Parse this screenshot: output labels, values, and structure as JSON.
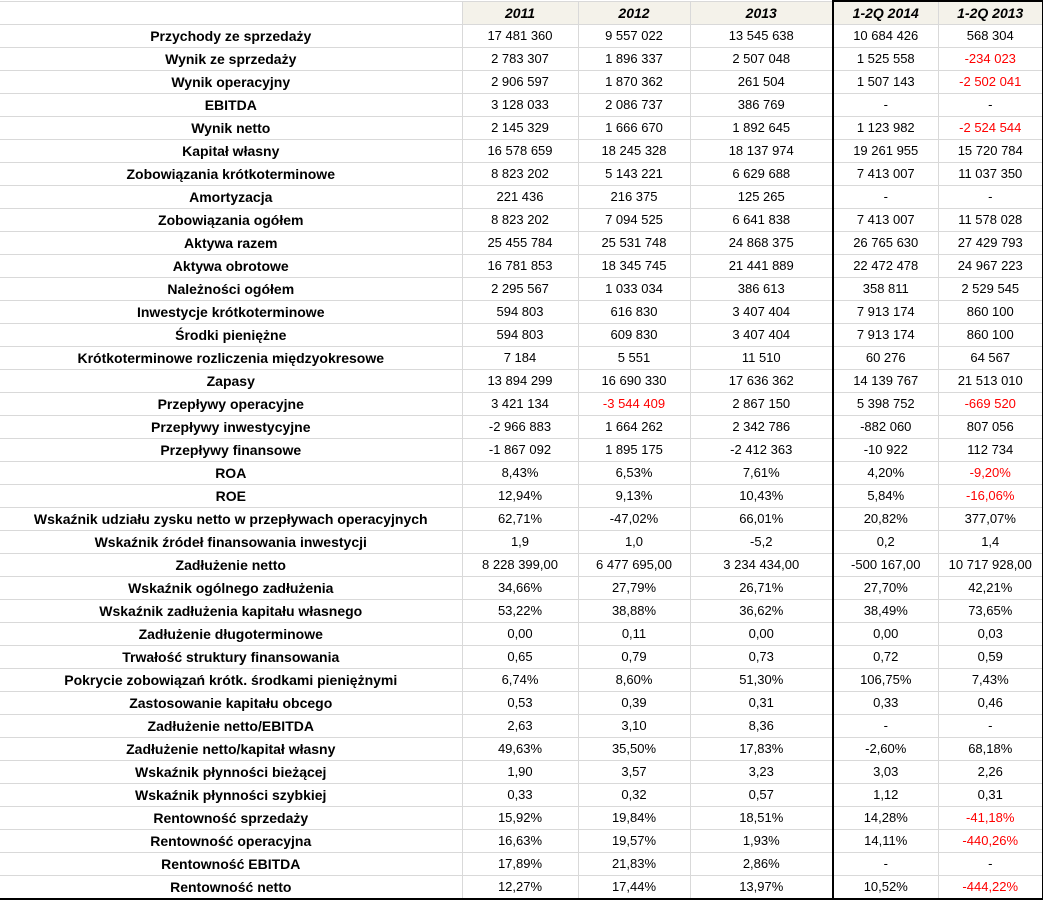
{
  "table": {
    "columns": [
      "",
      "2011",
      "2012",
      "2013",
      "1-2Q 2014",
      "1-2Q 2013"
    ],
    "rows": [
      {
        "label": "Przychody ze sprzedaży",
        "values": [
          "17 481 360",
          "9 557 022",
          "13 545 638",
          "10 684 426",
          "568 304"
        ],
        "red": []
      },
      {
        "label": "Wynik ze sprzedaży",
        "values": [
          "2 783 307",
          "1 896 337",
          "2 507 048",
          "1 525 558",
          "-234 023"
        ],
        "red": [
          4
        ]
      },
      {
        "label": "Wynik operacyjny",
        "values": [
          "2 906 597",
          "1 870 362",
          "261 504",
          "1 507 143",
          "-2 502 041"
        ],
        "red": [
          4
        ]
      },
      {
        "label": "EBITDA",
        "values": [
          "3 128 033",
          "2 086 737",
          "386 769",
          "-",
          "-"
        ],
        "red": []
      },
      {
        "label": "Wynik netto",
        "values": [
          "2 145 329",
          "1 666 670",
          "1 892 645",
          "1 123 982",
          "-2 524 544"
        ],
        "red": [
          4
        ]
      },
      {
        "label": "Kapitał własny",
        "values": [
          "16 578 659",
          "18 245 328",
          "18 137 974",
          "19 261 955",
          "15 720 784"
        ],
        "red": []
      },
      {
        "label": "Zobowiązania krótkoterminowe",
        "values": [
          "8 823 202",
          "5 143 221",
          "6 629 688",
          "7 413 007",
          "11 037 350"
        ],
        "red": []
      },
      {
        "label": "Amortyzacja",
        "values": [
          "221 436",
          "216 375",
          "125 265",
          "-",
          "-"
        ],
        "red": []
      },
      {
        "label": "Zobowiązania ogółem",
        "values": [
          "8 823 202",
          "7 094 525",
          "6 641 838",
          "7 413 007",
          "11 578 028"
        ],
        "red": []
      },
      {
        "label": "Aktywa razem",
        "values": [
          "25 455 784",
          "25 531 748",
          "24 868 375",
          "26 765 630",
          "27 429 793"
        ],
        "red": []
      },
      {
        "label": "Aktywa obrotowe",
        "values": [
          "16 781 853",
          "18 345 745",
          "21 441 889",
          "22 472 478",
          "24 967 223"
        ],
        "red": []
      },
      {
        "label": "Należności ogółem",
        "values": [
          "2 295 567",
          "1 033 034",
          "386 613",
          "358 811",
          "2 529 545"
        ],
        "red": []
      },
      {
        "label": "Inwestycje krótkoterminowe",
        "values": [
          "594 803",
          "616 830",
          "3 407 404",
          "7 913 174",
          "860 100"
        ],
        "red": []
      },
      {
        "label": "Środki pieniężne",
        "values": [
          "594 803",
          "609 830",
          "3 407 404",
          "7 913 174",
          "860 100"
        ],
        "red": []
      },
      {
        "label": "Krótkoterminowe rozliczenia międzyokresowe",
        "values": [
          "7 184",
          "5 551",
          "11 510",
          "60 276",
          "64 567"
        ],
        "red": []
      },
      {
        "label": "Zapasy",
        "values": [
          "13 894 299",
          "16 690 330",
          "17 636 362",
          "14 139 767",
          "21 513 010"
        ],
        "red": []
      },
      {
        "label": "Przepływy operacyjne",
        "values": [
          "3 421 134",
          "-3 544 409",
          "2 867 150",
          "5 398 752",
          "-669 520"
        ],
        "red": [
          1,
          4
        ]
      },
      {
        "label": "Przepływy inwestycyjne",
        "values": [
          "-2 966 883",
          "1 664 262",
          "2 342 786",
          "-882 060",
          "807 056"
        ],
        "red": []
      },
      {
        "label": "Przepływy finansowe",
        "values": [
          "-1 867 092",
          "1 895 175",
          "-2 412 363",
          "-10 922",
          "112 734"
        ],
        "red": []
      },
      {
        "label": "ROA",
        "values": [
          "8,43%",
          "6,53%",
          "7,61%",
          "4,20%",
          "-9,20%"
        ],
        "red": [
          4
        ]
      },
      {
        "label": "ROE",
        "values": [
          "12,94%",
          "9,13%",
          "10,43%",
          "5,84%",
          "-16,06%"
        ],
        "red": [
          4
        ]
      },
      {
        "label": "Wskaźnik udziału zysku netto w przepływach operacyjnych",
        "values": [
          "62,71%",
          "-47,02%",
          "66,01%",
          "20,82%",
          "377,07%"
        ],
        "red": []
      },
      {
        "label": "Wskaźnik źródeł finansowania inwestycji",
        "values": [
          "1,9",
          "1,0",
          "-5,2",
          "0,2",
          "1,4"
        ],
        "red": []
      },
      {
        "label": "Zadłużenie netto",
        "values": [
          "8 228 399,00",
          "6 477 695,00",
          "3 234 434,00",
          "-500 167,00",
          "10 717 928,00"
        ],
        "red": []
      },
      {
        "label": "Wskaźnik ogólnego zadłużenia",
        "values": [
          "34,66%",
          "27,79%",
          "26,71%",
          "27,70%",
          "42,21%"
        ],
        "red": []
      },
      {
        "label": "Wskaźnik zadłużenia kapitału własnego",
        "values": [
          "53,22%",
          "38,88%",
          "36,62%",
          "38,49%",
          "73,65%"
        ],
        "red": []
      },
      {
        "label": "Zadłużenie długoterminowe",
        "values": [
          "0,00",
          "0,11",
          "0,00",
          "0,00",
          "0,03"
        ],
        "red": []
      },
      {
        "label": "Trwałość struktury finansowania",
        "values": [
          "0,65",
          "0,79",
          "0,73",
          "0,72",
          "0,59"
        ],
        "red": []
      },
      {
        "label": "Pokrycie zobowiązań krótk. środkami pieniężnymi",
        "values": [
          "6,74%",
          "8,60%",
          "51,30%",
          "106,75%",
          "7,43%"
        ],
        "red": []
      },
      {
        "label": "Zastosowanie kapitału obcego",
        "values": [
          "0,53",
          "0,39",
          "0,31",
          "0,33",
          "0,46"
        ],
        "red": []
      },
      {
        "label": "Zadłużenie netto/EBITDA",
        "values": [
          "2,63",
          "3,10",
          "8,36",
          "-",
          "-"
        ],
        "red": []
      },
      {
        "label": "Zadłużenie netto/kapitał własny",
        "values": [
          "49,63%",
          "35,50%",
          "17,83%",
          "-2,60%",
          "68,18%"
        ],
        "red": []
      },
      {
        "label": "Wskaźnik płynności bieżącej",
        "values": [
          "1,90",
          "3,57",
          "3,23",
          "3,03",
          "2,26"
        ],
        "red": []
      },
      {
        "label": "Wskaźnik płynności szybkiej",
        "values": [
          "0,33",
          "0,32",
          "0,57",
          "1,12",
          "0,31"
        ],
        "red": []
      },
      {
        "label": "Rentowność sprzedaży",
        "values": [
          "15,92%",
          "19,84%",
          "18,51%",
          "14,28%",
          "-41,18%"
        ],
        "red": [
          4
        ]
      },
      {
        "label": "Rentowność operacyjna",
        "values": [
          "16,63%",
          "19,57%",
          "1,93%",
          "14,11%",
          "-440,26%"
        ],
        "red": [
          4
        ]
      },
      {
        "label": "Rentowność EBITDA",
        "values": [
          "17,89%",
          "21,83%",
          "2,86%",
          "-",
          "-"
        ],
        "red": []
      },
      {
        "label": "Rentowność netto",
        "values": [
          "12,27%",
          "17,44%",
          "13,97%",
          "10,52%",
          "-444,22%"
        ],
        "red": [
          4
        ]
      }
    ]
  },
  "colors": {
    "negative_value": "#ff0000",
    "header_background": "#f4f2ea",
    "gridline": "#d9d9d9",
    "frame": "#000000"
  }
}
